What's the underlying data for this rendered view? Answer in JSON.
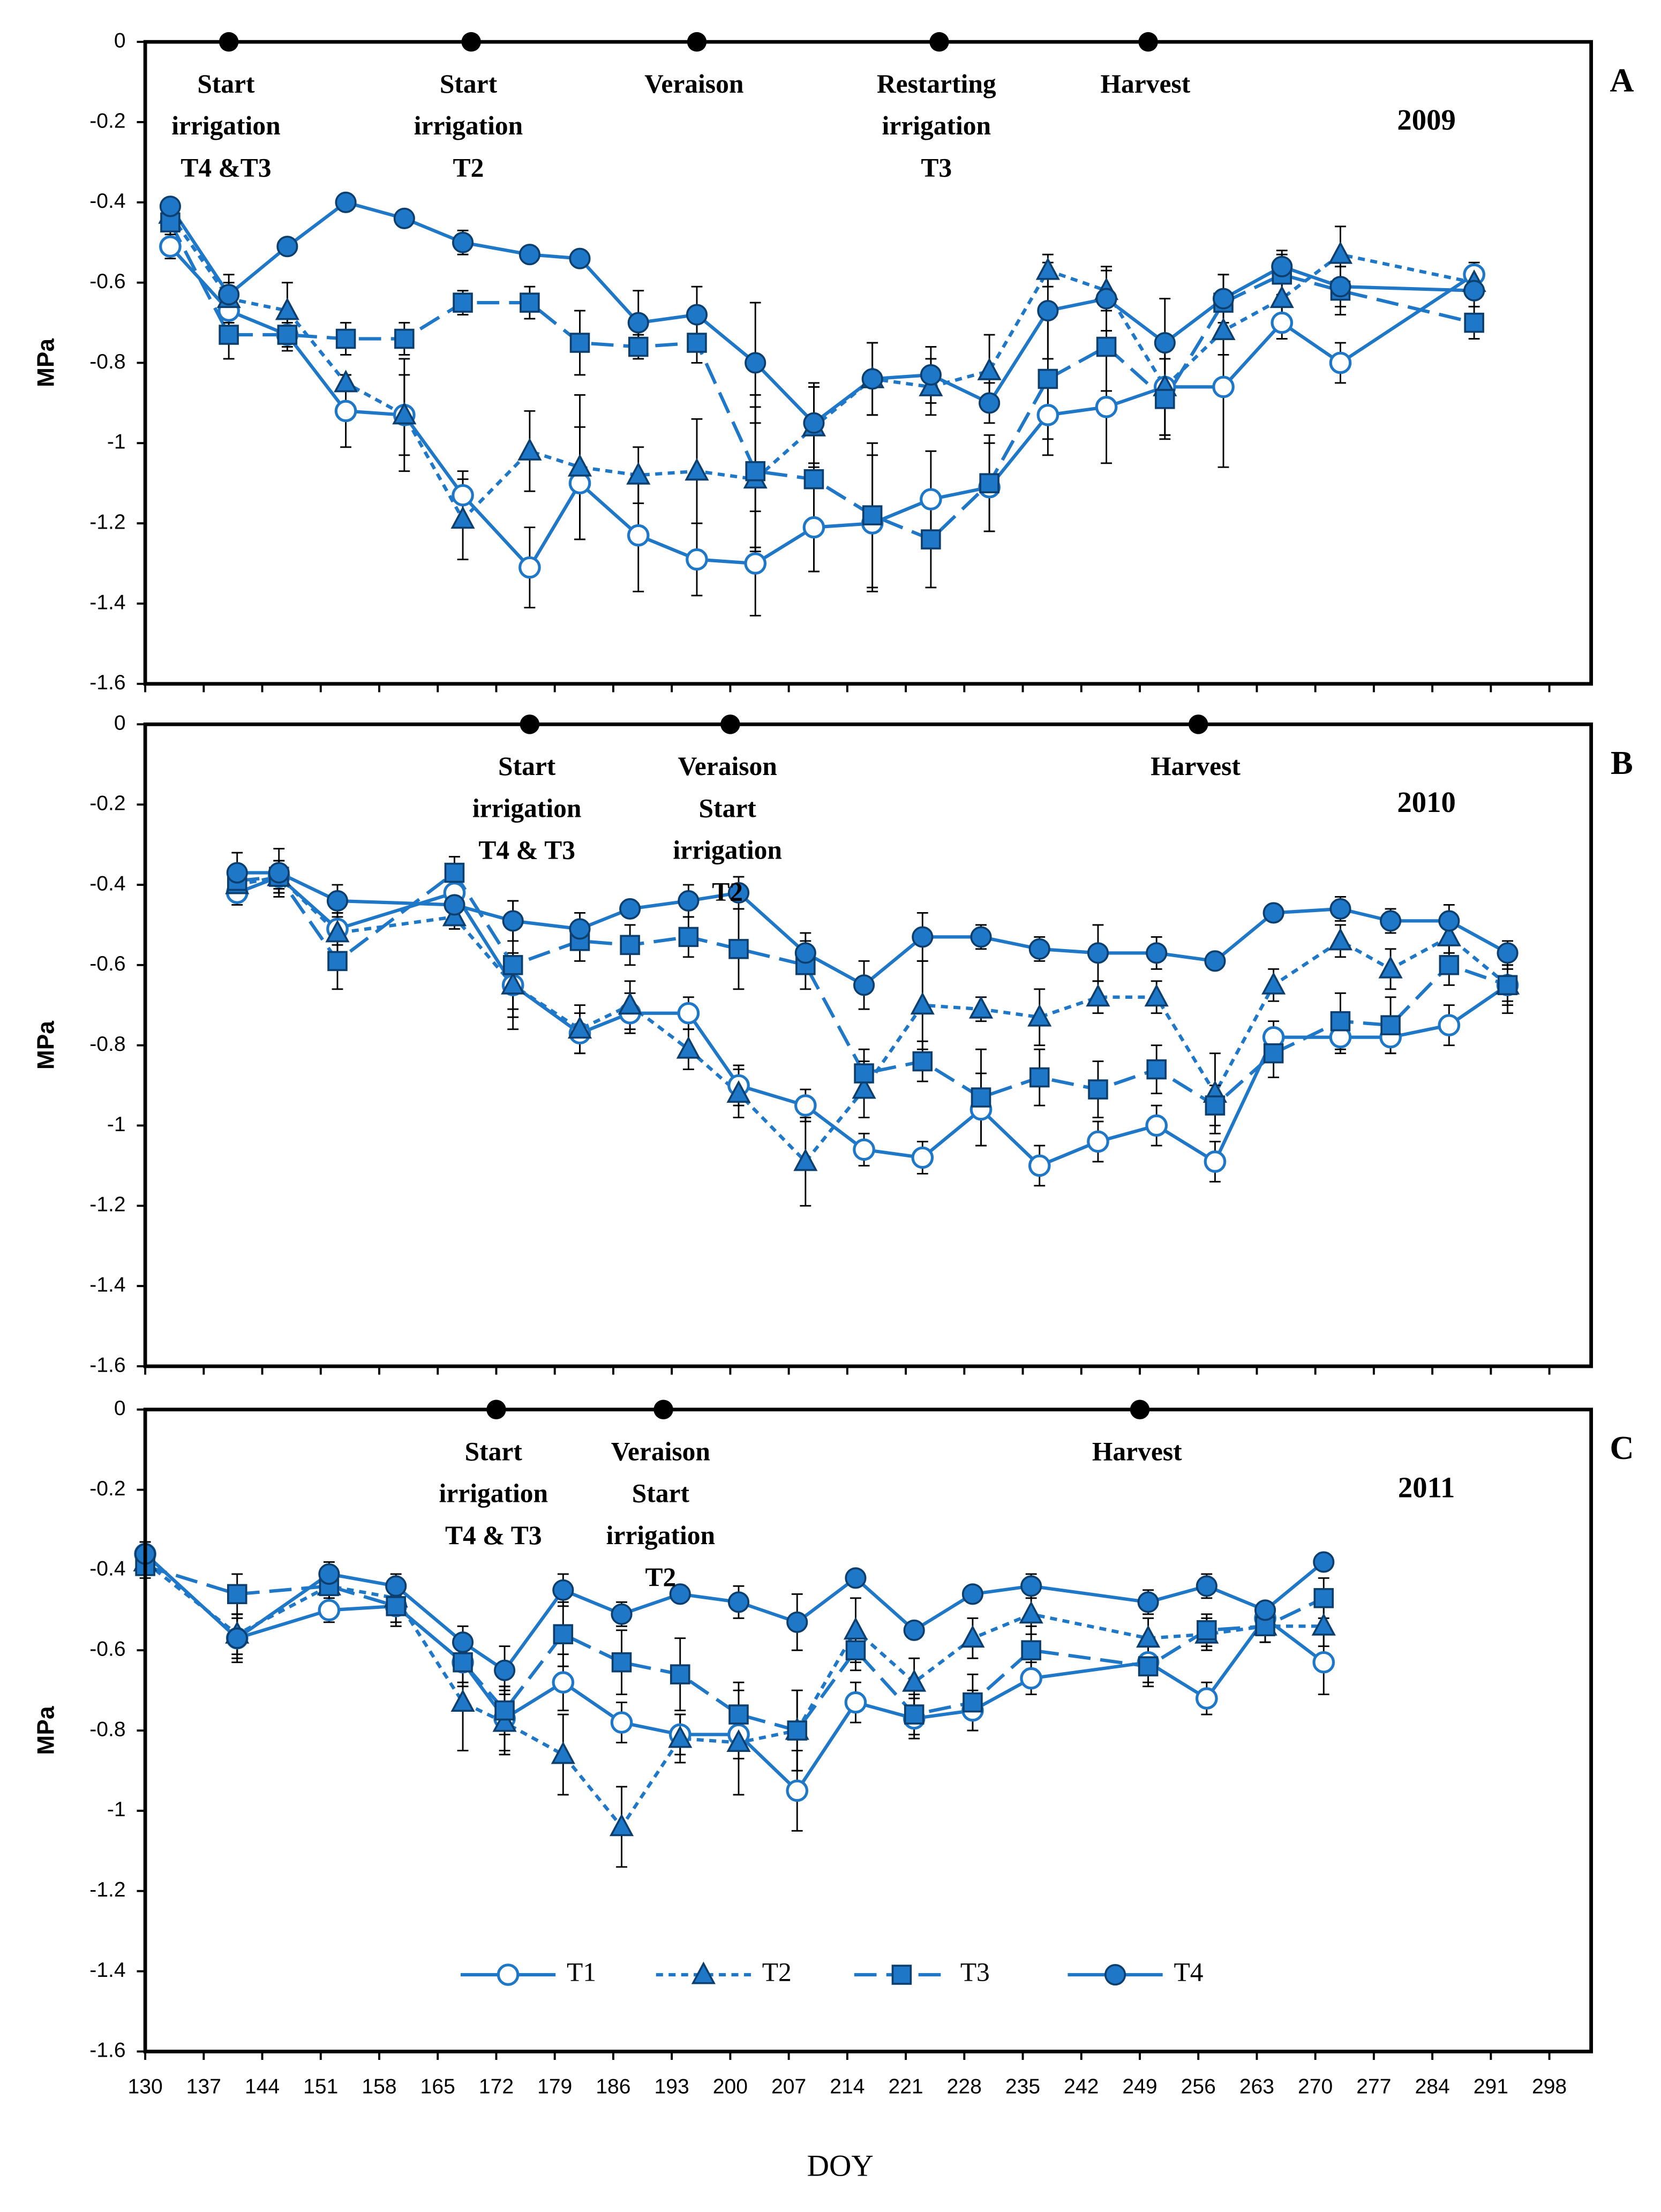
{
  "legend": {
    "items": [
      {
        "name": "T1",
        "color": "#1f77c8",
        "marker": "open-circle",
        "dash": "none"
      },
      {
        "name": "T2",
        "color": "#1f77c8",
        "marker": "triangle",
        "dash": "5,4"
      },
      {
        "name": "T3",
        "color": "#1f77c8",
        "marker": "square",
        "dash": "16,7"
      },
      {
        "name": "T4",
        "color": "#1f77c8",
        "marker": "circle",
        "dash": "none"
      }
    ]
  },
  "chart_data": [
    {
      "type": "line",
      "panel": "A",
      "year": "2009",
      "ylabel": "MPa",
      "xlim": [
        130,
        303
      ],
      "xticks": [
        130,
        137,
        144,
        151,
        158,
        165,
        172,
        179,
        186,
        193,
        200,
        207,
        214,
        221,
        228,
        235,
        242,
        249,
        256,
        263,
        270,
        277,
        284,
        291,
        298
      ],
      "ylim": [
        -1.6,
        0
      ],
      "yticks": [
        0,
        -0.2,
        -0.4,
        -0.6,
        -0.8,
        -1,
        -1.2,
        -1.4,
        -1.6
      ],
      "events": [
        {
          "x": 140,
          "lines": [
            "Start",
            "irrigation",
            "T4 &T3"
          ]
        },
        {
          "x": 169,
          "lines": [
            "Start",
            "irrigation",
            "T2"
          ]
        },
        {
          "x": 196,
          "lines": [
            "Veraison"
          ]
        },
        {
          "x": 225,
          "lines": [
            "Restarting",
            "irrigation",
            "T3"
          ]
        },
        {
          "x": 250,
          "lines": [
            "Harvest"
          ]
        }
      ],
      "x": [
        133,
        140,
        147,
        154,
        161,
        168,
        176,
        182,
        189,
        196,
        203,
        210,
        217,
        224,
        231,
        238,
        245,
        252,
        259,
        266,
        273,
        289
      ],
      "series": [
        {
          "values": [
            -0.51,
            -0.67,
            -0.73,
            -0.92,
            -0.93,
            -1.13,
            -1.31,
            -1.1,
            -1.23,
            -1.29,
            -1.3,
            -1.21,
            -1.2,
            -1.14,
            -1.11,
            -0.93,
            -0.91,
            -0.86,
            -0.86,
            -0.7,
            -0.8,
            -0.58
          ],
          "errors": [
            0.03,
            0.03,
            0.03,
            0.09,
            0.14,
            0.06,
            0.1,
            0.14,
            0.14,
            0.09,
            0.13,
            0.11,
            0.17,
            0.12,
            0.11,
            0.1,
            0.14,
            0.12,
            0.2,
            0.04,
            0.05,
            0.03
          ]
        },
        {
          "values": [
            -0.43,
            -0.64,
            -0.67,
            -0.85,
            -0.93,
            -1.19,
            -1.02,
            -1.06,
            -1.08,
            -1.07,
            -1.09,
            -0.96,
            -0.84,
            -0.86,
            -0.82,
            -0.57,
            -0.62,
            -0.86,
            -0.72,
            -0.64,
            -0.53,
            -0.6
          ],
          "errors": [
            0.03,
            0.04,
            0.07,
            0.02,
            0.1,
            0.1,
            0.1,
            0.18,
            0.07,
            0.13,
            0.18,
            0.1,
            0.09,
            0.07,
            0.09,
            0.04,
            0.05,
            0.12,
            0.06,
            0.05,
            0.07,
            0.03
          ]
        },
        {
          "values": [
            -0.45,
            -0.73,
            -0.73,
            -0.74,
            -0.74,
            -0.65,
            -0.65,
            -0.75,
            -0.76,
            -0.75,
            -1.07,
            -1.09,
            -1.18,
            -1.24,
            -1.1,
            -0.84,
            -0.76,
            -0.89,
            -0.65,
            -0.58,
            -0.62,
            -0.7
          ],
          "errors": [
            0.03,
            0.06,
            0.04,
            0.04,
            0.04,
            0.03,
            0.04,
            0.08,
            0.03,
            0.05,
            0.19,
            0.23,
            0.18,
            0.12,
            0.12,
            0.15,
            0.11,
            0.1,
            0.07,
            0.05,
            0.06,
            0.04
          ]
        },
        {
          "values": [
            -0.41,
            -0.63,
            -0.51,
            -0.4,
            -0.44,
            -0.5,
            -0.53,
            -0.54,
            -0.7,
            -0.68,
            -0.8,
            -0.95,
            -0.84,
            -0.83,
            -0.9,
            -0.67,
            -0.64,
            -0.75,
            -0.64,
            -0.56,
            -0.61,
            -0.62
          ],
          "errors": [
            0.02,
            0.05,
            0.02,
            0.02,
            0.02,
            0.03,
            0.02,
            0.02,
            0.08,
            0.07,
            0.15,
            0.1,
            0.09,
            0.07,
            0.05,
            0.12,
            0.08,
            0.11,
            0.06,
            0.04,
            0.05,
            0.04
          ]
        }
      ]
    },
    {
      "type": "line",
      "panel": "B",
      "year": "2010",
      "ylabel": "MPa",
      "xlim": [
        130,
        303
      ],
      "xticks": [
        130,
        137,
        144,
        151,
        158,
        165,
        172,
        179,
        186,
        193,
        200,
        207,
        214,
        221,
        228,
        235,
        242,
        249,
        256,
        263,
        270,
        277,
        284,
        291,
        298
      ],
      "ylim": [
        -1.6,
        0
      ],
      "yticks": [
        0,
        -0.2,
        -0.4,
        -0.6,
        -0.8,
        -1,
        -1.2,
        -1.4,
        -1.6
      ],
      "events": [
        {
          "x": 176,
          "lines": [
            "Start",
            "irrigation",
            "T4 & T3"
          ]
        },
        {
          "x": 200,
          "lines": [
            "Veraison",
            "Start",
            "irrigation",
            "T2"
          ]
        },
        {
          "x": 256,
          "lines": [
            "Harvest"
          ]
        }
      ],
      "x": [
        141,
        146,
        153,
        167,
        174,
        182,
        188,
        195,
        201,
        209,
        216,
        223,
        230,
        237,
        244,
        251,
        258,
        265,
        273,
        279,
        286,
        293
      ],
      "series": [
        {
          "values": [
            -0.42,
            -0.38,
            -0.51,
            -0.42,
            -0.65,
            -0.77,
            -0.72,
            -0.72,
            -0.9,
            -0.95,
            -1.06,
            -1.08,
            -0.96,
            -1.1,
            -1.04,
            -1,
            -1.09,
            -0.78,
            -0.78,
            -0.78,
            -0.75,
            -0.65
          ],
          "errors": [
            0.03,
            0.03,
            0.04,
            0.03,
            0.06,
            0.05,
            0.05,
            0.04,
            0.05,
            0.04,
            0.04,
            0.04,
            0.09,
            0.05,
            0.05,
            0.05,
            0.05,
            0.04,
            0.04,
            0.04,
            0.05,
            0.04
          ]
        },
        {
          "values": [
            -0.4,
            -0.38,
            -0.52,
            -0.48,
            -0.65,
            -0.76,
            -0.7,
            -0.81,
            -0.92,
            -1.09,
            -0.91,
            -0.7,
            -0.71,
            -0.73,
            -0.68,
            -0.68,
            -0.92,
            -0.65,
            -0.54,
            -0.61,
            -0.53,
            -0.65
          ],
          "errors": [
            0.03,
            0.04,
            0.05,
            0.03,
            0.08,
            0.06,
            0.06,
            0.05,
            0.06,
            0.11,
            0.07,
            0.11,
            0.03,
            0.07,
            0.04,
            0.04,
            0.1,
            0.04,
            0.04,
            0.05,
            0.04,
            0.05
          ]
        },
        {
          "values": [
            -0.39,
            -0.38,
            -0.59,
            -0.37,
            -0.6,
            -0.54,
            -0.55,
            -0.53,
            -0.56,
            -0.6,
            -0.87,
            -0.84,
            -0.93,
            -0.88,
            -0.91,
            -0.86,
            -0.95,
            -0.82,
            -0.74,
            -0.75,
            -0.6,
            -0.65
          ],
          "errors": [
            0.04,
            0.04,
            0.07,
            0.04,
            0.16,
            0.05,
            0.05,
            0.05,
            0.1,
            0.06,
            0.06,
            0.05,
            0.12,
            0.07,
            0.07,
            0.06,
            0.05,
            0.06,
            0.07,
            0.07,
            0.05,
            0.07
          ]
        },
        {
          "values": [
            -0.37,
            -0.37,
            -0.44,
            -0.45,
            -0.49,
            -0.51,
            -0.46,
            -0.44,
            -0.42,
            -0.57,
            -0.65,
            -0.53,
            -0.53,
            -0.56,
            -0.57,
            -0.57,
            -0.59,
            -0.47,
            -0.46,
            -0.49,
            -0.49,
            -0.57
          ],
          "errors": [
            0.05,
            0.06,
            0.04,
            0.03,
            0.05,
            0.04,
            0.02,
            0.04,
            0.04,
            0.05,
            0.06,
            0.06,
            0.03,
            0.03,
            0.07,
            0.04,
            0.02,
            0.02,
            0.03,
            0.03,
            0.04,
            0.03
          ]
        }
      ]
    },
    {
      "type": "line",
      "panel": "C",
      "year": "2011",
      "ylabel": "MPa",
      "xlabel": "DOY",
      "xlim": [
        130,
        303
      ],
      "xticks": [
        130,
        137,
        144,
        151,
        158,
        165,
        172,
        179,
        186,
        193,
        200,
        207,
        214,
        221,
        228,
        235,
        242,
        249,
        256,
        263,
        270,
        277,
        284,
        291,
        298
      ],
      "ylim": [
        -1.6,
        0
      ],
      "yticks": [
        0,
        -0.2,
        -0.4,
        -0.6,
        -0.8,
        -1,
        -1.2,
        -1.4,
        -1.6
      ],
      "events": [
        {
          "x": 172,
          "lines": [
            "Start",
            "irrigation",
            "T4 & T3"
          ]
        },
        {
          "x": 192,
          "lines": [
            "Veraison",
            "Start",
            "irrigation",
            "T2"
          ]
        },
        {
          "x": 249,
          "lines": [
            "Harvest"
          ]
        }
      ],
      "x": [
        130,
        141,
        152,
        160,
        168,
        173,
        180,
        187,
        194,
        201,
        208,
        215,
        222,
        229,
        236,
        250,
        257,
        264,
        271
      ],
      "series": [
        {
          "values": [
            -0.36,
            -0.57,
            -0.5,
            -0.49,
            -0.63,
            -0.77,
            -0.68,
            -0.78,
            -0.81,
            -0.81,
            -0.95,
            -0.73,
            -0.77,
            -0.75,
            -0.67,
            -0.63,
            -0.72,
            -0.52,
            -0.63
          ],
          "errors": [
            0.03,
            0.05,
            0.03,
            0.04,
            0.05,
            0.08,
            0.07,
            0.05,
            0.05,
            0.06,
            0.1,
            0.05,
            0.05,
            0.05,
            0.04,
            0.05,
            0.04,
            0.04,
            0.08
          ]
        },
        {
          "values": [
            -0.38,
            -0.56,
            -0.44,
            -0.47,
            -0.73,
            -0.78,
            -0.86,
            -1.04,
            -0.82,
            -0.83,
            -0.8,
            -0.55,
            -0.68,
            -0.57,
            -0.51,
            -0.57,
            -0.56,
            -0.54,
            -0.54
          ],
          "errors": [
            0.03,
            0.05,
            0.04,
            0.04,
            0.12,
            0.08,
            0.1,
            0.1,
            0.06,
            0.13,
            0.1,
            0.08,
            0.06,
            0.05,
            0.05,
            0.05,
            0.04,
            0.04,
            0.05
          ]
        },
        {
          "values": [
            -0.39,
            -0.46,
            -0.44,
            -0.49,
            -0.63,
            -0.75,
            -0.56,
            -0.63,
            -0.66,
            -0.76,
            -0.8,
            -0.6,
            -0.76,
            -0.73,
            -0.6,
            -0.64,
            -0.55,
            -0.54,
            -0.47
          ],
          "errors": [
            0.03,
            0.05,
            0.04,
            0.05,
            0.06,
            0.06,
            0.08,
            0.08,
            0.09,
            0.08,
            0.1,
            0.05,
            0.05,
            0.07,
            0.06,
            0.05,
            0.04,
            0.04,
            0.05
          ]
        },
        {
          "values": [
            -0.36,
            -0.57,
            -0.41,
            -0.44,
            -0.58,
            -0.65,
            -0.45,
            -0.51,
            -0.46,
            -0.48,
            -0.53,
            -0.42,
            -0.55,
            -0.46,
            -0.44,
            -0.48,
            -0.44,
            -0.5,
            -0.38
          ],
          "errors": [
            0.03,
            0.06,
            0.03,
            0.03,
            0.04,
            0.06,
            0.04,
            0.03,
            0.02,
            0.04,
            0.07,
            0.02,
            0.02,
            0.02,
            0.03,
            0.03,
            0.03,
            0.02,
            0.02
          ]
        }
      ]
    }
  ]
}
